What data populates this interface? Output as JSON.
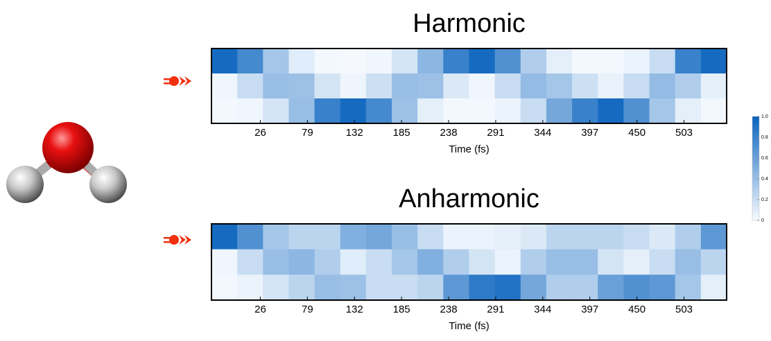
{
  "chart_data": [
    {
      "type": "heatmap",
      "title": "Harmonic",
      "xlabel": "Time (fs)",
      "xlim": [
        -29,
        551
      ],
      "xticks": [
        26,
        79,
        132,
        185,
        238,
        291,
        344,
        397,
        450,
        503
      ],
      "values": [
        [
          0.95,
          0.75,
          0.35,
          0.1,
          0.02,
          0.01,
          0.03,
          0.15,
          0.45,
          0.8,
          0.95,
          0.7,
          0.3,
          0.08,
          0.02,
          0.02,
          0.05,
          0.2,
          0.8,
          0.95
        ],
        [
          0.03,
          0.2,
          0.4,
          0.38,
          0.15,
          0.04,
          0.18,
          0.4,
          0.38,
          0.12,
          0.03,
          0.2,
          0.42,
          0.35,
          0.18,
          0.06,
          0.2,
          0.42,
          0.3,
          0.08
        ],
        [
          0.02,
          0.03,
          0.15,
          0.4,
          0.8,
          0.95,
          0.75,
          0.38,
          0.08,
          0.02,
          0.02,
          0.05,
          0.2,
          0.55,
          0.8,
          0.95,
          0.7,
          0.35,
          0.08,
          0.02
        ]
      ]
    },
    {
      "type": "heatmap",
      "title": "Anharmonic",
      "xlabel": "Time (fs)",
      "xlim": [
        -29,
        551
      ],
      "xticks": [
        26,
        79,
        132,
        185,
        238,
        291,
        344,
        397,
        450,
        503
      ],
      "values": [
        [
          0.95,
          0.7,
          0.35,
          0.25,
          0.25,
          0.5,
          0.55,
          0.4,
          0.2,
          0.05,
          0.05,
          0.08,
          0.12,
          0.25,
          0.25,
          0.25,
          0.2,
          0.12,
          0.3,
          0.65
        ],
        [
          0.03,
          0.2,
          0.4,
          0.45,
          0.3,
          0.1,
          0.2,
          0.35,
          0.5,
          0.3,
          0.15,
          0.05,
          0.3,
          0.4,
          0.4,
          0.15,
          0.08,
          0.2,
          0.4,
          0.25
        ],
        [
          0.02,
          0.05,
          0.15,
          0.25,
          0.4,
          0.38,
          0.2,
          0.2,
          0.25,
          0.65,
          0.85,
          0.9,
          0.55,
          0.3,
          0.3,
          0.6,
          0.7,
          0.65,
          0.35,
          0.08
        ]
      ]
    },
    {
      "type": "colorbar",
      "ylim": [
        0,
        1
      ],
      "colors": [
        "#f7fbff",
        "#0a63be"
      ],
      "yticks": [
        0,
        0.2,
        0.4,
        0.6,
        0.8,
        {
          "value": 1,
          "label": "1.0"
        }
      ]
    }
  ]
}
